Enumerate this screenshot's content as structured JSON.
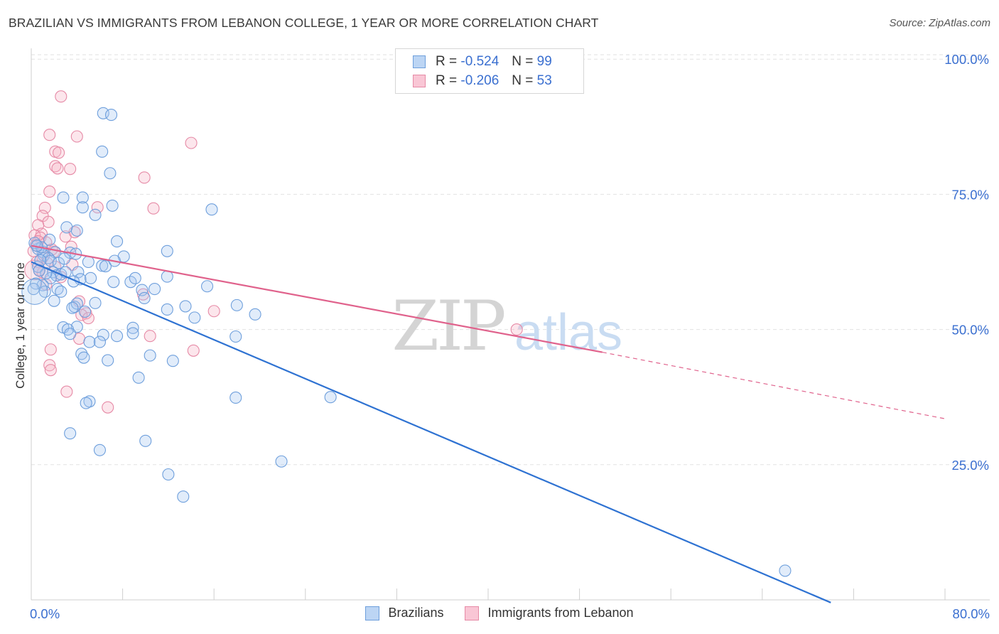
{
  "header": {
    "title": "BRAZILIAN VS IMMIGRANTS FROM LEBANON COLLEGE, 1 YEAR OR MORE CORRELATION CHART",
    "source": "Source: ZipAtlas.com"
  },
  "legend": {
    "rows": [
      {
        "r_label": "R =",
        "r_value": "-0.524",
        "n_label": "N =",
        "n_value": "99"
      },
      {
        "r_label": "R =",
        "r_value": "-0.206",
        "n_label": "N =",
        "n_value": "53"
      }
    ]
  },
  "bottom_legend": [
    "Brazilians",
    "Immigrants from Lebanon"
  ],
  "watermark": {
    "zip": "ZIP",
    "atlas": "atlas"
  },
  "colors": {
    "blue_fill": "#a9c9f0",
    "blue_stroke": "#6e9fdc",
    "blue_line": "#2e72d2",
    "pink_fill": "#f6b6c9",
    "pink_stroke": "#e68aa6",
    "pink_line": "#e0628c",
    "axis_text": "#3a6fd0",
    "grid": "#e2e2e2"
  },
  "chart_data": {
    "type": "scatter",
    "title": "BRAZILIAN VS IMMIGRANTS FROM LEBANON COLLEGE, 1 YEAR OR MORE CORRELATION CHART",
    "xlabel": "",
    "ylabel": "College, 1 year or more",
    "xlim": [
      0,
      80
    ],
    "ylim": [
      0,
      102
    ],
    "x_ticks": [
      "0.0%",
      "80.0%"
    ],
    "y_ticks": [
      {
        "value": 25,
        "label": "25.0%"
      },
      {
        "value": 50,
        "label": "50.0%"
      },
      {
        "value": 75,
        "label": "75.0%"
      },
      {
        "value": 100,
        "label": "100.0%"
      }
    ],
    "series": [
      {
        "name": "Brazilians",
        "R": -0.524,
        "N": 99,
        "trend": {
          "x0": 0,
          "y0": 62.5,
          "x1": 70,
          "y1": -0.5,
          "dashed_to": null
        },
        "points": [
          [
            6.3,
            90.0
          ],
          [
            7.0,
            89.7
          ],
          [
            6.2,
            82.9
          ],
          [
            6.9,
            78.9
          ],
          [
            2.8,
            74.4
          ],
          [
            4.5,
            74.4
          ],
          [
            4.5,
            72.6
          ],
          [
            7.1,
            72.9
          ],
          [
            5.6,
            71.2
          ],
          [
            15.8,
            72.2
          ],
          [
            3.1,
            68.9
          ],
          [
            4.0,
            68.3
          ],
          [
            7.5,
            66.3
          ],
          [
            11.9,
            64.5
          ],
          [
            1.0,
            64.4
          ],
          [
            2.1,
            64.3
          ],
          [
            3.4,
            64.2
          ],
          [
            3.9,
            64.0
          ],
          [
            8.1,
            63.5
          ],
          [
            1.1,
            63.7
          ],
          [
            1.5,
            63.2
          ],
          [
            1.7,
            62.7
          ],
          [
            2.4,
            62.3
          ],
          [
            5.0,
            62.5
          ],
          [
            6.2,
            61.8
          ],
          [
            6.5,
            61.7
          ],
          [
            7.3,
            62.7
          ],
          [
            0.6,
            61.6
          ],
          [
            0.6,
            64.9
          ],
          [
            0.9,
            65.2
          ],
          [
            1.9,
            60.6
          ],
          [
            2.2,
            60.0
          ],
          [
            2.6,
            60.2
          ],
          [
            3.0,
            60.6
          ],
          [
            4.1,
            60.6
          ],
          [
            4.3,
            59.3
          ],
          [
            5.2,
            59.5
          ],
          [
            8.7,
            58.8
          ],
          [
            9.1,
            59.5
          ],
          [
            11.9,
            59.8
          ],
          [
            1.7,
            59.5
          ],
          [
            1.0,
            58.2
          ],
          [
            2.3,
            57.5
          ],
          [
            7.2,
            58.8
          ],
          [
            9.7,
            57.3
          ],
          [
            10.8,
            57.5
          ],
          [
            15.4,
            58.0
          ],
          [
            2.6,
            57.0
          ],
          [
            9.9,
            55.8
          ],
          [
            2.0,
            55.3
          ],
          [
            5.6,
            54.9
          ],
          [
            13.5,
            54.3
          ],
          [
            18.0,
            54.5
          ],
          [
            3.8,
            54.2
          ],
          [
            4.0,
            54.8
          ],
          [
            11.9,
            53.7
          ],
          [
            3.6,
            54.0
          ],
          [
            4.7,
            53.3
          ],
          [
            19.6,
            52.8
          ],
          [
            14.3,
            52.2
          ],
          [
            4.0,
            50.5
          ],
          [
            8.9,
            50.3
          ],
          [
            2.8,
            50.4
          ],
          [
            3.2,
            50.0
          ],
          [
            3.4,
            49.2
          ],
          [
            6.3,
            49.0
          ],
          [
            7.5,
            48.8
          ],
          [
            8.9,
            49.3
          ],
          [
            17.9,
            48.7
          ],
          [
            5.1,
            47.7
          ],
          [
            6.0,
            47.7
          ],
          [
            4.4,
            45.5
          ],
          [
            10.4,
            45.2
          ],
          [
            4.6,
            44.8
          ],
          [
            6.7,
            44.3
          ],
          [
            12.4,
            44.2
          ],
          [
            9.4,
            41.1
          ],
          [
            17.9,
            37.4
          ],
          [
            26.2,
            37.5
          ],
          [
            5.1,
            36.7
          ],
          [
            4.8,
            36.4
          ],
          [
            3.4,
            30.8
          ],
          [
            10.0,
            29.4
          ],
          [
            6.0,
            27.7
          ],
          [
            21.9,
            25.6
          ],
          [
            12.0,
            23.2
          ],
          [
            13.3,
            19.1
          ],
          [
            66.0,
            5.4
          ],
          [
            0.3,
            66.0
          ],
          [
            0.5,
            65.5
          ],
          [
            0.8,
            62.8
          ],
          [
            1.3,
            60.4
          ],
          [
            0.4,
            58.5
          ],
          [
            0.7,
            60.9
          ],
          [
            1.2,
            57.0
          ],
          [
            2.9,
            63.1
          ],
          [
            3.7,
            58.9
          ],
          [
            0.2,
            57.5
          ],
          [
            1.6,
            66.6
          ]
        ]
      },
      {
        "name": "Immigrants from Lebanon",
        "R": -0.206,
        "N": 53,
        "trend": {
          "x0": 0,
          "y0": 65.5,
          "x1": 50,
          "y1": 45.8,
          "dashed_to": {
            "x": 80,
            "y": 33.5
          }
        },
        "points": [
          [
            2.6,
            93.1
          ],
          [
            1.6,
            86.0
          ],
          [
            4.0,
            85.7
          ],
          [
            14.0,
            84.5
          ],
          [
            2.1,
            82.9
          ],
          [
            2.4,
            82.7
          ],
          [
            2.1,
            80.2
          ],
          [
            2.3,
            79.8
          ],
          [
            3.4,
            79.7
          ],
          [
            9.9,
            78.1
          ],
          [
            1.6,
            75.5
          ],
          [
            10.7,
            72.4
          ],
          [
            5.8,
            72.6
          ],
          [
            1.2,
            72.5
          ],
          [
            1.0,
            71.0
          ],
          [
            1.5,
            69.9
          ],
          [
            0.6,
            69.3
          ],
          [
            0.9,
            67.7
          ],
          [
            0.3,
            67.4
          ],
          [
            0.8,
            67.0
          ],
          [
            3.0,
            67.2
          ],
          [
            3.8,
            68.0
          ],
          [
            1.3,
            66.1
          ],
          [
            0.4,
            65.6
          ],
          [
            3.5,
            65.3
          ],
          [
            0.2,
            64.5
          ],
          [
            2.0,
            64.4
          ],
          [
            1.0,
            63.3
          ],
          [
            1.4,
            62.3
          ],
          [
            3.6,
            62.0
          ],
          [
            2.1,
            61.6
          ],
          [
            0.7,
            61.0
          ],
          [
            1.0,
            60.5
          ],
          [
            1.3,
            58.3
          ],
          [
            4.2,
            55.2
          ],
          [
            9.8,
            56.5
          ],
          [
            16.0,
            53.4
          ],
          [
            4.8,
            53.0
          ],
          [
            4.4,
            52.7
          ],
          [
            5.0,
            52.1
          ],
          [
            10.4,
            48.8
          ],
          [
            4.2,
            48.3
          ],
          [
            42.5,
            50.0
          ],
          [
            1.7,
            46.3
          ],
          [
            14.2,
            46.1
          ],
          [
            1.6,
            43.4
          ],
          [
            1.7,
            42.5
          ],
          [
            3.1,
            38.5
          ],
          [
            6.7,
            35.6
          ],
          [
            0.6,
            66.3
          ],
          [
            1.8,
            64.8
          ],
          [
            0.5,
            62.5
          ],
          [
            2.6,
            59.7
          ]
        ]
      }
    ]
  }
}
